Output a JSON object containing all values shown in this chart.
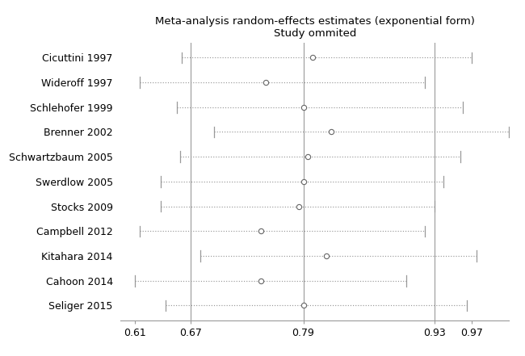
{
  "title_line1": "Meta-analysis random-effects estimates (exponential form)",
  "title_line2": "Study ommited",
  "studies": [
    "Cicuttini 1997",
    "Wideroff 1997",
    "Schlehofer 1999",
    "Brenner 2002",
    "Schwartzbaum 2005",
    "Swerdlow 2005",
    "Stocks 2009",
    "Campbell 2012",
    "Kitahara 2014",
    "Cahoon 2014",
    "Seliger 2015"
  ],
  "estimates": [
    0.8,
    0.75,
    0.79,
    0.82,
    0.795,
    0.79,
    0.785,
    0.745,
    0.815,
    0.745,
    0.79
  ],
  "ci_low": [
    0.66,
    0.615,
    0.655,
    0.695,
    0.658,
    0.638,
    0.638,
    0.615,
    0.68,
    0.61,
    0.643
  ],
  "ci_high": [
    0.97,
    0.92,
    0.96,
    1.01,
    0.958,
    0.94,
    0.93,
    0.92,
    0.975,
    0.9,
    0.965
  ],
  "xlim": [
    0.595,
    1.01
  ],
  "xticks": [
    0.61,
    0.67,
    0.79,
    0.93,
    0.97
  ],
  "xtick_labels": [
    "0.61",
    "0.67",
    "0.79",
    "0.93",
    "0.97"
  ],
  "vlines": [
    0.67,
    0.79,
    0.93
  ],
  "bg_color": "#ffffff",
  "line_color": "#999999",
  "dot_color": "#ffffff",
  "dot_edge_color": "#666666",
  "title_fontsize": 9.5,
  "label_fontsize": 9,
  "tick_fontsize": 9
}
